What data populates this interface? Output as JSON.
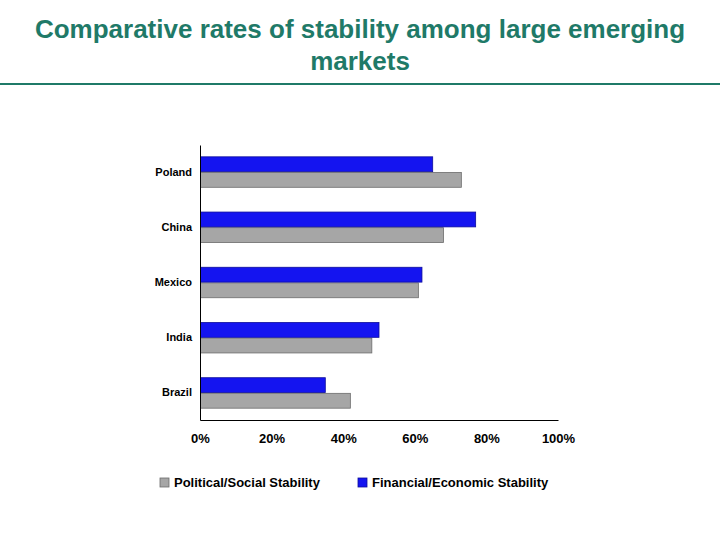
{
  "chart_data": {
    "type": "bar",
    "orientation": "horizontal",
    "title": "Comparative rates of stability among large emerging markets",
    "categories": [
      "Poland",
      "China",
      "Mexico",
      "India",
      "Brazil"
    ],
    "series": [
      {
        "name": "Political/Social Stability",
        "color": "#a6a6a6",
        "values": [
          73,
          68,
          61,
          48,
          42
        ]
      },
      {
        "name": "Financial/Economic Stability",
        "color": "#1414f0",
        "values": [
          65,
          77,
          62,
          50,
          35
        ]
      }
    ],
    "xlim": [
      0,
      100
    ],
    "xticks": [
      {
        "value": 0,
        "label": "0%"
      },
      {
        "value": 20,
        "label": "20%"
      },
      {
        "value": 40,
        "label": "40%"
      },
      {
        "value": 60,
        "label": "60%"
      },
      {
        "value": 80,
        "label": "80%"
      },
      {
        "value": 100,
        "label": "100%"
      }
    ],
    "grid": false,
    "legend": "bottom"
  }
}
